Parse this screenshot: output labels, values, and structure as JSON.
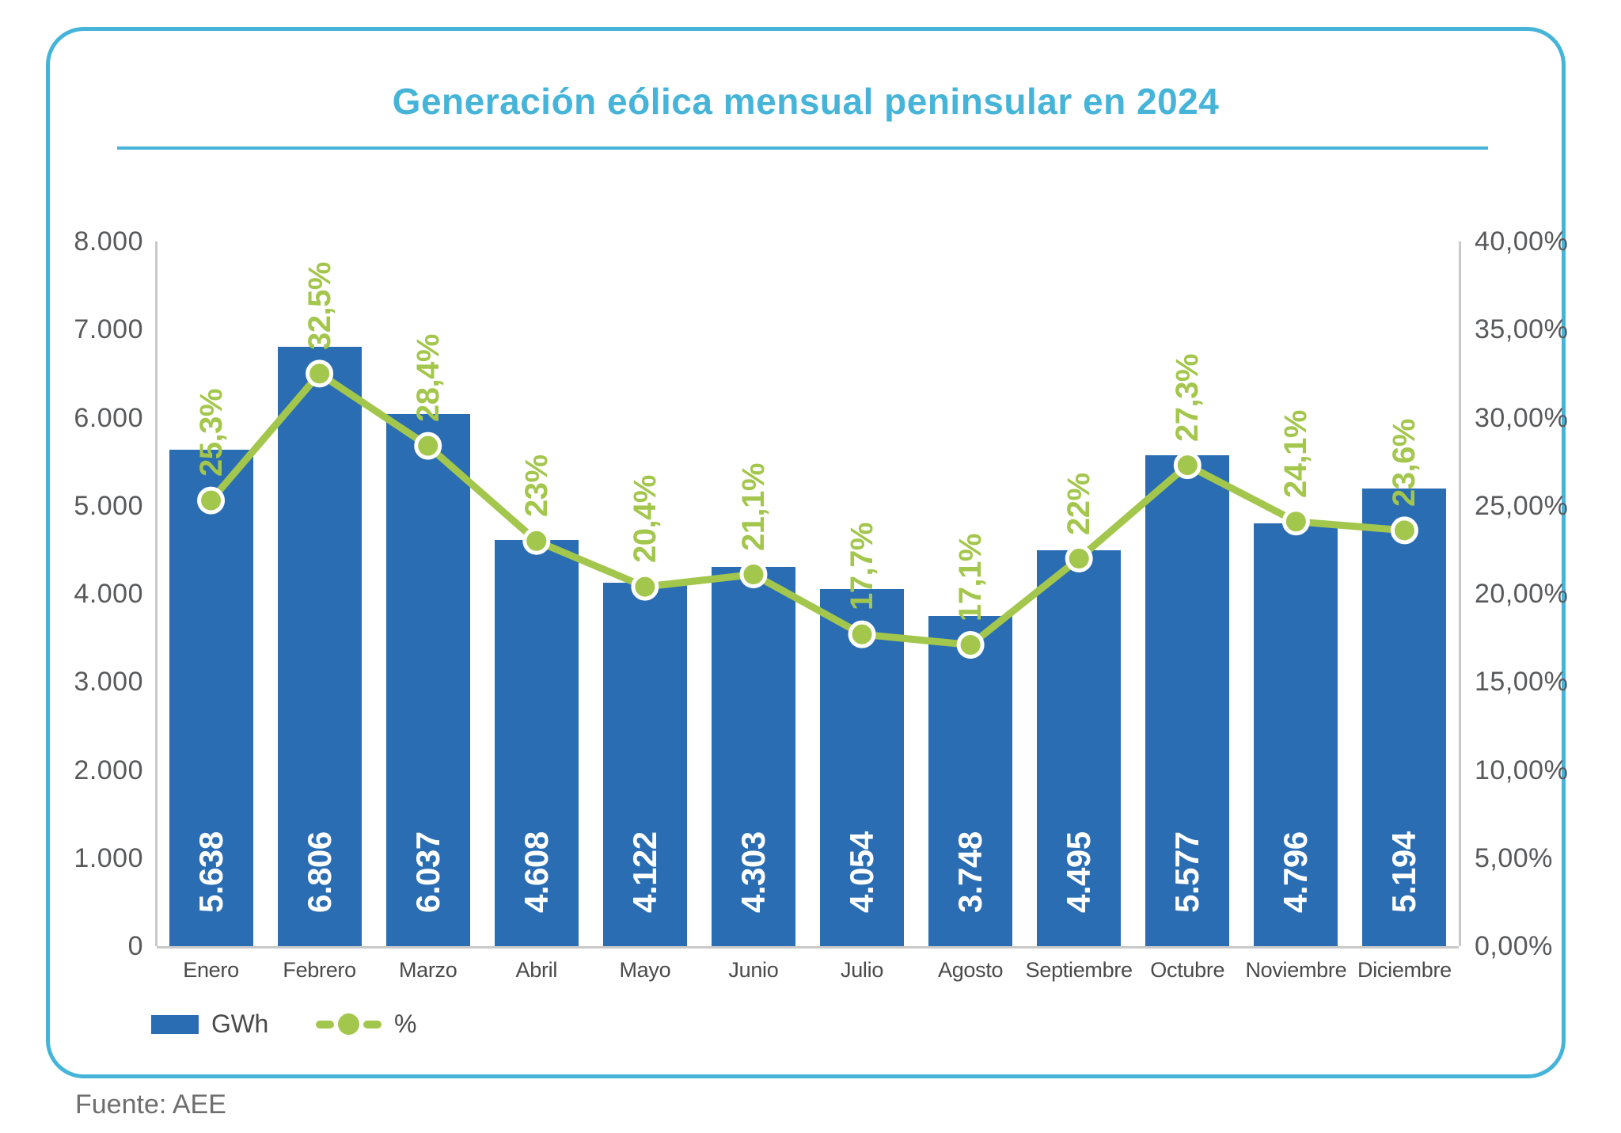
{
  "source": "Fuente: AEE",
  "colors": {
    "accent_cyan": "#45B4D8",
    "bar_blue": "#2A6DB3",
    "line_green": "#A3C64C",
    "axis_text": "#58595B",
    "month_text": "#4A4A4A",
    "legend_text": "#4A4A4A",
    "source_text": "#6E6E6E",
    "axis_line": "#C9C9C9",
    "bar_label": "#FFFFFF"
  },
  "chart_data": {
    "type": "bar",
    "subtype": "combo-bar-line-dual-axis",
    "title": "Generación eólica mensual peninsular en 2024",
    "categories": [
      "Enero",
      "Febrero",
      "Marzo",
      "Abril",
      "Mayo",
      "Junio",
      "Julio",
      "Agosto",
      "Septiembre",
      "Octubre",
      "Noviembre",
      "Diciembre"
    ],
    "series": [
      {
        "name": "GWh",
        "type": "bar",
        "axis": "left",
        "values": [
          5638,
          6806,
          6037,
          4608,
          4122,
          4303,
          4054,
          3748,
          4495,
          5577,
          4796,
          5194
        ],
        "value_labels": [
          "5.638",
          "6.806",
          "6.037",
          "4.608",
          "4.122",
          "4.303",
          "4.054",
          "3.748",
          "4.495",
          "5.577",
          "4.796",
          "5.194"
        ]
      },
      {
        "name": "%",
        "type": "line",
        "axis": "right",
        "values": [
          25.3,
          32.5,
          28.4,
          23,
          20.4,
          21.1,
          17.7,
          17.1,
          22,
          27.3,
          24.1,
          23.6
        ],
        "value_labels": [
          "25,3%",
          "32,5%",
          "28,4%",
          "23%",
          "20,4%",
          "21,1%",
          "17,7%",
          "17,1%",
          "22%",
          "27,3%",
          "24,1%",
          "23,6%"
        ]
      }
    ],
    "left_axis": {
      "min": 0,
      "max": 8000,
      "tick_labels": [
        "8.000",
        "7.000",
        "6.000",
        "5.000",
        "4.000",
        "3.000",
        "2.000",
        "1.000",
        "0"
      ]
    },
    "right_axis": {
      "min": 0,
      "max": 40,
      "tick_labels": [
        "40,00%",
        "35,00%",
        "30,00%",
        "25,00%",
        "20,00%",
        "15,00%",
        "10,00%",
        "5,00%",
        "0,00%"
      ]
    },
    "legend": {
      "position": "bottom-left",
      "items": [
        "GWh",
        "%"
      ]
    },
    "grid": false
  }
}
